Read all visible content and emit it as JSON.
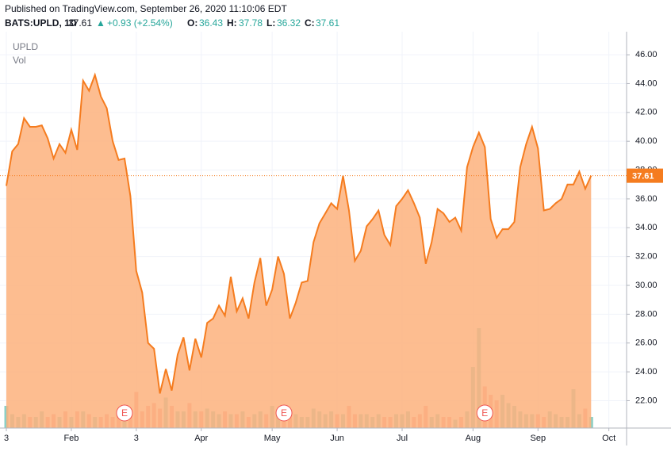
{
  "header": {
    "published": "Published on TradingView.com, September 26, 2020 11:10:06 EDT",
    "symbol": "BATS:UPLD, 1D",
    "price": "37.61",
    "arrow": "▲",
    "change": "+0.93 (+2.54%)",
    "o_label": "O:",
    "open": "36.43",
    "h_label": "H:",
    "high": "37.78",
    "l_label": "L:",
    "low": "36.32",
    "c_label": "C:",
    "close": "37.61"
  },
  "chart_data": {
    "type": "area",
    "series": [
      {
        "name": "UPLD",
        "color": "#f57c1f",
        "fill": "#fdb27c",
        "values": [
          36.9,
          39.3,
          39.8,
          41.6,
          41.0,
          41.0,
          41.1,
          40.2,
          38.8,
          39.8,
          39.2,
          40.8,
          39.4,
          44.2,
          43.5,
          44.6,
          43.1,
          42.3,
          40.0,
          38.7,
          38.8,
          36.2,
          31.0,
          29.5,
          26.0,
          25.6,
          22.5,
          24.2,
          22.7,
          25.2,
          26.4,
          24.1,
          26.3,
          25.0,
          27.4,
          27.7,
          28.6,
          27.9,
          30.6,
          28.2,
          29.1,
          27.7,
          30.2,
          31.9,
          28.6,
          29.7,
          32.0,
          30.8,
          27.7,
          28.8,
          30.2,
          30.3,
          33.0,
          34.3,
          35.0,
          35.7,
          35.3,
          37.6,
          35.2,
          31.7,
          32.4,
          34.1,
          34.6,
          35.2,
          33.5,
          32.8,
          35.5,
          36.0,
          36.6,
          35.7,
          34.7,
          31.5,
          33.0,
          35.3,
          35.0,
          34.4,
          34.7,
          33.8,
          38.2,
          39.6,
          40.6,
          39.6,
          34.6,
          33.3,
          33.9,
          33.9,
          34.4,
          38.2,
          39.8,
          41.0,
          39.5,
          35.2,
          35.3,
          35.7,
          36.0,
          37.0,
          37.0,
          37.9,
          36.7,
          37.61
        ]
      },
      {
        "name": "Vol",
        "up_color": "#8ccfc5",
        "down_color": "#f4a3a0",
        "values": [
          4,
          2.5,
          2,
          2.5,
          2,
          2,
          3,
          2,
          2.5,
          2,
          3,
          2,
          3,
          3,
          2.5,
          2,
          2,
          2.5,
          2,
          3,
          2,
          3,
          6.5,
          3,
          4,
          4.5,
          3.5,
          5.5,
          4,
          3,
          3,
          4.5,
          3,
          3,
          3.5,
          3,
          2.5,
          3,
          2.5,
          2.5,
          3,
          2,
          2.5,
          3,
          2.5,
          4,
          3,
          2.5,
          2,
          2.5,
          2,
          2,
          3.5,
          3,
          2.5,
          3,
          2.5,
          2.5,
          4,
          2.5,
          2.5,
          2.5,
          2,
          2.5,
          2,
          2,
          2.5,
          2.5,
          3,
          2,
          2.5,
          4,
          2,
          2.5,
          2,
          2,
          1.5,
          2,
          3,
          11,
          18,
          7.5,
          6,
          5,
          6,
          4.5,
          4,
          3,
          2.5,
          2.5,
          2.5,
          2,
          3,
          2.5,
          2,
          2,
          7,
          2.5,
          3.5,
          2
        ]
      }
    ],
    "vol_lim": [
      0,
      20
    ],
    "xlim": [
      0,
      105
    ],
    "xticks": [
      {
        "value": 0,
        "label": "3"
      },
      {
        "value": 11,
        "label": "Feb"
      },
      {
        "value": 22,
        "label": "3"
      },
      {
        "value": 33,
        "label": "Apr"
      },
      {
        "value": 45,
        "label": "May"
      },
      {
        "value": 56,
        "label": "Jun"
      },
      {
        "value": 67,
        "label": "Jul"
      },
      {
        "value": 79,
        "label": "Aug"
      },
      {
        "value": 90,
        "label": "Sep"
      },
      {
        "value": 102,
        "label": "Oct"
      }
    ],
    "ylim": [
      20.1,
      47.6
    ],
    "yticks": [
      {
        "value": 22,
        "label": "22.00"
      },
      {
        "value": 24,
        "label": "24.00"
      },
      {
        "value": 26,
        "label": "26.00"
      },
      {
        "value": 28,
        "label": "28.00"
      },
      {
        "value": 30,
        "label": "30.00"
      },
      {
        "value": 32,
        "label": "32.00"
      },
      {
        "value": 34,
        "label": "34.00"
      },
      {
        "value": 36,
        "label": "36.00"
      },
      {
        "value": 38,
        "label": "38.00"
      },
      {
        "value": 40,
        "label": "40.00"
      },
      {
        "value": 42,
        "label": "42.00"
      },
      {
        "value": 44,
        "label": "44.00"
      },
      {
        "value": 46,
        "label": "46.00"
      }
    ],
    "events": [
      {
        "index": 20,
        "label": "E"
      },
      {
        "index": 47,
        "label": "E"
      },
      {
        "index": 81,
        "label": "E"
      }
    ],
    "grid": true
  }
}
